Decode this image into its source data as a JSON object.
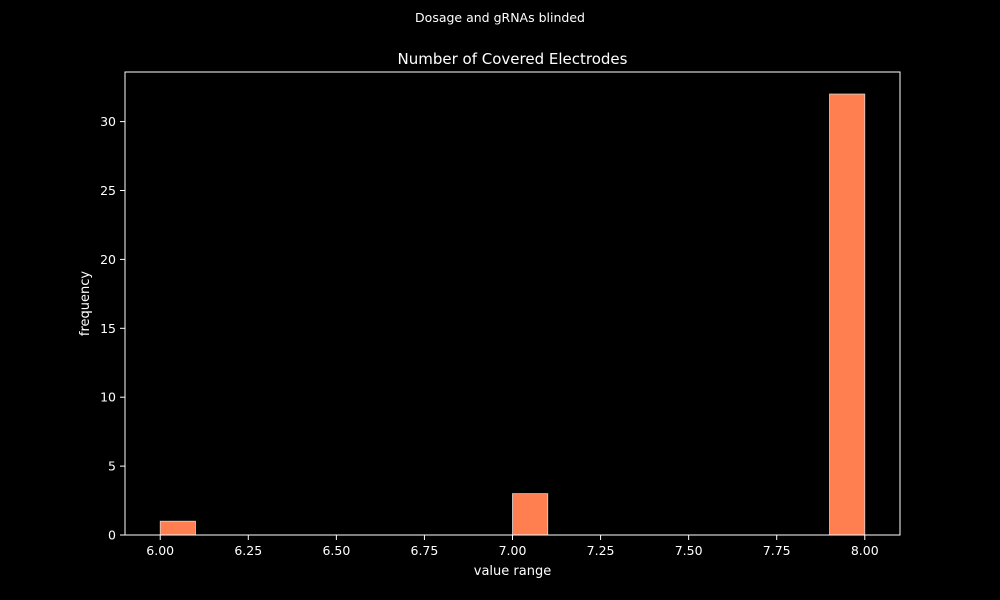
{
  "suptitle": "Dosage and gRNAs blinded",
  "chart_data": {
    "type": "bar",
    "title": "Number of Covered Electrodes",
    "xlabel": "value range",
    "ylabel": "frequency",
    "xlim": [
      5.9,
      8.1
    ],
    "ylim": [
      0,
      33.6
    ],
    "bin_width": 0.1,
    "bins": [
      {
        "x0": 6.0,
        "x1": 6.1,
        "count": 1
      },
      {
        "x0": 7.0,
        "x1": 7.1,
        "count": 3
      },
      {
        "x0": 7.9,
        "x1": 8.0,
        "count": 32
      }
    ],
    "xticks": [
      6.0,
      6.25,
      6.5,
      6.75,
      7.0,
      7.25,
      7.5,
      7.75,
      8.0
    ],
    "xtick_labels": [
      "6.00",
      "6.25",
      "6.50",
      "6.75",
      "7.00",
      "7.25",
      "7.50",
      "7.75",
      "8.00"
    ],
    "yticks": [
      0,
      5,
      10,
      15,
      20,
      25,
      30
    ],
    "ytick_labels": [
      "0",
      "5",
      "10",
      "15",
      "20",
      "25",
      "30"
    ],
    "bar_color": "#ff7f50",
    "bar_edge_color": "#d9d9d9",
    "background": "#000000",
    "foreground": "#ffffff",
    "grid": false,
    "legend": "none"
  }
}
